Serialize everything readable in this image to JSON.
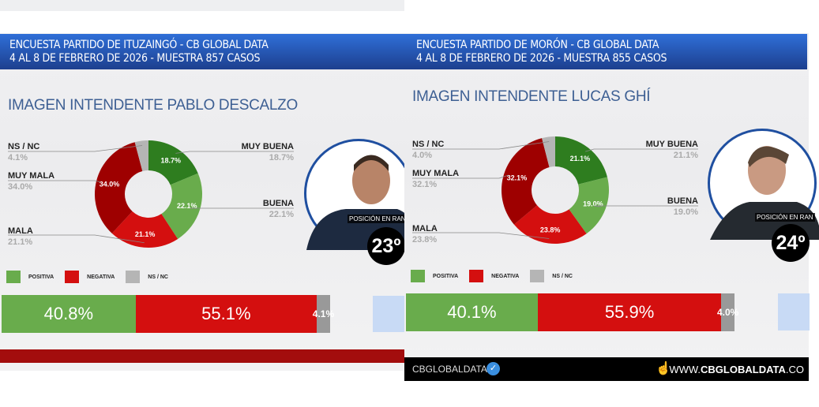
{
  "colors": {
    "muy_buena": "#2e7d1f",
    "buena": "#69ac4c",
    "mala": "#d40f0f",
    "muy_mala": "#9e0000",
    "ns_nc": "#b5b5b5",
    "positiva": "#69ac4c",
    "negativa": "#d40f0f",
    "header_blue": "#2a5fc4"
  },
  "panels": [
    {
      "header_line1": "ENCUESTA PARTIDO DE ITUZAINGÓ - CB GLOBAL DATA",
      "header_line2": "4 AL 8 DE FEBRERO DE 2026 - MUESTRA 857 CASOS",
      "subtitle": "IMAGEN INTENDENTE  PABLO DESCALZO",
      "rank_label": "POSICIÓN EN RAN",
      "rank": "23º"
    },
    {
      "header_line1": "ENCUESTA PARTIDO DE MORÓN - CB GLOBAL DATA",
      "header_line2": "4 AL 8 DE FEBRERO DE 2026 - MUESTRA 855 CASOS",
      "subtitle": "IMAGEN INTENDENTE  LUCAS GHÍ",
      "rank_label": "POSICIÓN EN RAN",
      "rank": "24º",
      "footer": {
        "brand": "CBGLOBALDATA",
        "url_prefix": "WWW.",
        "url_bold": "CBGLOBALDATA",
        "url_suffix": ".CO",
        "verified_icon": "verified-check-icon",
        "hand_icon": "pointer-hand-icon"
      }
    }
  ],
  "legend": [
    "POSITIVA",
    "NEGATIVA",
    "NS / NC"
  ],
  "chart_data": [
    {
      "type": "pie",
      "donut": true,
      "title": "IMAGEN INTENDENTE  PABLO DESCALZO",
      "categories": [
        "MUY BUENA",
        "BUENA",
        "MALA",
        "MUY MALA",
        "NS / NC"
      ],
      "values": [
        18.7,
        22.1,
        21.1,
        34.0,
        4.1
      ],
      "labels": [
        "18.7%",
        "22.1%",
        "21.1%",
        "34.0%",
        "4.1%"
      ]
    },
    {
      "type": "bar",
      "stacked": true,
      "orientation": "horizontal",
      "categories": [
        "POSITIVA",
        "NEGATIVA",
        "NS / NC"
      ],
      "values": [
        40.8,
        55.1,
        4.1
      ],
      "labels": [
        "40.8%",
        "55.1%",
        "4.1%"
      ]
    },
    {
      "type": "pie",
      "donut": true,
      "title": "IMAGEN INTENDENTE  LUCAS GHÍ",
      "categories": [
        "MUY BUENA",
        "BUENA",
        "MALA",
        "MUY MALA",
        "NS / NC"
      ],
      "values": [
        21.1,
        19.0,
        23.8,
        32.1,
        4.0
      ],
      "labels": [
        "21.1%",
        "19.0%",
        "23.8%",
        "32.1%",
        "4.0%"
      ]
    },
    {
      "type": "bar",
      "stacked": true,
      "orientation": "horizontal",
      "categories": [
        "POSITIVA",
        "NEGATIVA",
        "NS / NC"
      ],
      "values": [
        40.1,
        55.9,
        4.0
      ],
      "labels": [
        "40.1%",
        "55.9%",
        "4.0%"
      ]
    }
  ]
}
